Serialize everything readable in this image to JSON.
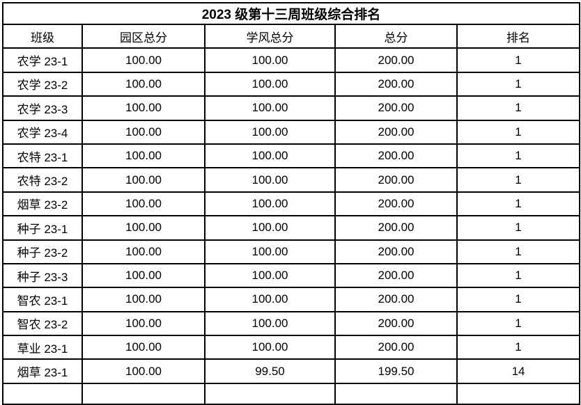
{
  "title": "2023 级第十三周班级综合排名",
  "columns": [
    "班级",
    "园区总分",
    "学风总分",
    "总分",
    "排名"
  ],
  "rows": [
    {
      "class": "农学 23-1",
      "campus_score": "100.00",
      "study_score": "100.00",
      "total_score": "200.00",
      "rank": "1"
    },
    {
      "class": "农学 23-2",
      "campus_score": "100.00",
      "study_score": "100.00",
      "total_score": "200.00",
      "rank": "1"
    },
    {
      "class": "农学 23-3",
      "campus_score": "100.00",
      "study_score": "100.00",
      "total_score": "200.00",
      "rank": "1"
    },
    {
      "class": "农学 23-4",
      "campus_score": "100.00",
      "study_score": "100.00",
      "total_score": "200.00",
      "rank": "1"
    },
    {
      "class": "农特 23-1",
      "campus_score": "100.00",
      "study_score": "100.00",
      "total_score": "200.00",
      "rank": "1"
    },
    {
      "class": "农特 23-2",
      "campus_score": "100.00",
      "study_score": "100.00",
      "total_score": "200.00",
      "rank": "1"
    },
    {
      "class": "烟草 23-2",
      "campus_score": "100.00",
      "study_score": "100.00",
      "total_score": "200.00",
      "rank": "1"
    },
    {
      "class": "种子 23-1",
      "campus_score": "100.00",
      "study_score": "100.00",
      "total_score": "200.00",
      "rank": "1"
    },
    {
      "class": "种子 23-2",
      "campus_score": "100.00",
      "study_score": "100.00",
      "total_score": "200.00",
      "rank": "1"
    },
    {
      "class": "种子 23-3",
      "campus_score": "100.00",
      "study_score": "100.00",
      "total_score": "200.00",
      "rank": "1"
    },
    {
      "class": "智农 23-1",
      "campus_score": "100.00",
      "study_score": "100.00",
      "total_score": "200.00",
      "rank": "1"
    },
    {
      "class": "智农 23-2",
      "campus_score": "100.00",
      "study_score": "100.00",
      "total_score": "200.00",
      "rank": "1"
    },
    {
      "class": "草业 23-1",
      "campus_score": "100.00",
      "study_score": "100.00",
      "total_score": "200.00",
      "rank": "1"
    },
    {
      "class": "烟草 23-1",
      "campus_score": "100.00",
      "study_score": "99.50",
      "total_score": "199.50",
      "rank": "14"
    }
  ],
  "colors": {
    "border": "#000000",
    "text": "#000000",
    "background": "#ffffff"
  }
}
